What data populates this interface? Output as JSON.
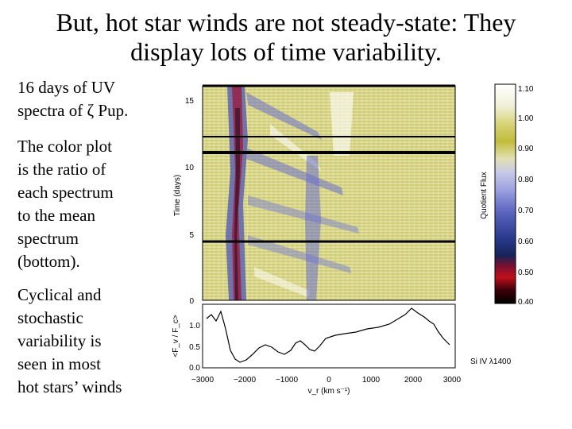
{
  "slide": {
    "title_line1": "But, hot star winds are not steady-state: They",
    "title_line2": "display lots of time variability.",
    "para1": [
      "16 days of UV",
      "spectra of ζ Pup."
    ],
    "para2": [
      "The color plot",
      "is the ratio of",
      "each spectrum",
      "to the mean",
      "spectrum",
      "(bottom)."
    ],
    "para3": [
      "Cyclical and",
      "stochastic",
      "variability is",
      "seen in most",
      "hot stars’ winds"
    ]
  },
  "figure": {
    "dynamic_ylabel": "Time (days)",
    "dynamic_yticks": [
      "15",
      "10",
      "5",
      "0"
    ],
    "colorbar_label": "Quotient Flux",
    "colorbar_ticks": [
      "1.10",
      "1.00",
      "0.90",
      "0.80",
      "0.70",
      "0.60",
      "0.50",
      "0.40"
    ],
    "profile_ylabel": "<F_v / F_c>",
    "profile_yticks": [
      "1.0",
      "0.5",
      "0.0"
    ],
    "xlabel": "v_r (km s⁻¹)",
    "xticks": [
      "−3000",
      "−2000",
      "−1000",
      "0",
      "1000",
      "2000",
      "3000"
    ],
    "line_id": "Si IV λ1400"
  },
  "colors": {
    "background_colormap": [
      "#000000",
      "#b00010",
      "#203070",
      "#6a74c8",
      "#a8aae0",
      "#e4e4b0",
      "#c8c040",
      "#ffffff"
    ]
  }
}
